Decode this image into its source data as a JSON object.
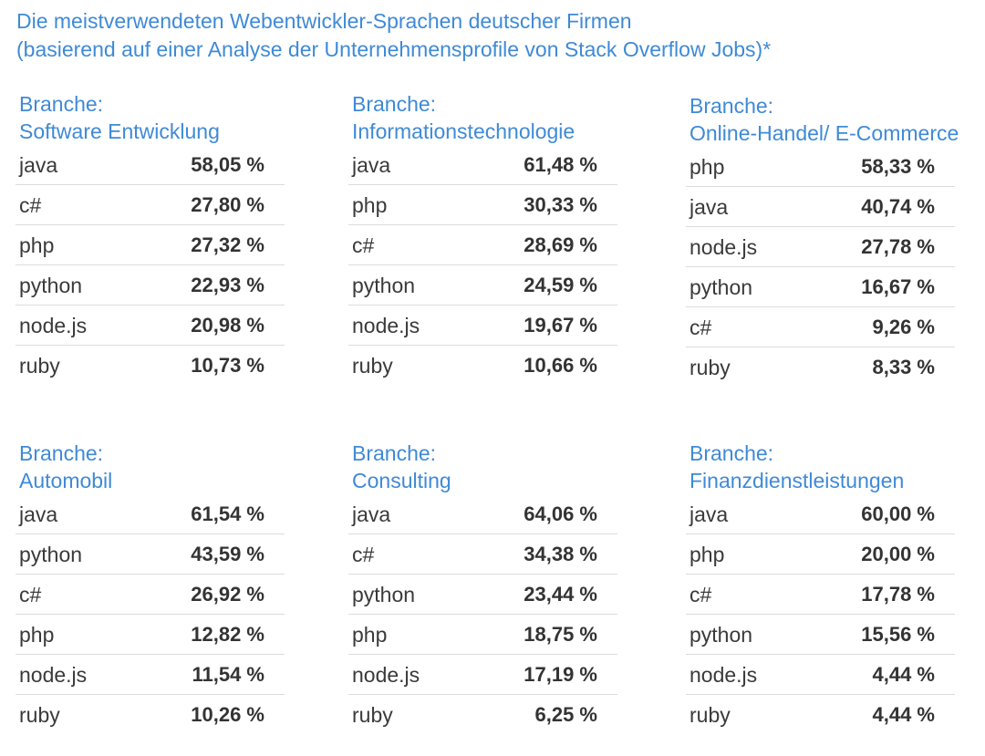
{
  "title": {
    "line1": "Die meistverwendeten Webentwickler-Sprachen deutscher Firmen",
    "line2": "(basierend auf einer Analyse der Unternehmensprofile von Stack Overflow Jobs)*"
  },
  "chart_data": {
    "type": "table",
    "title": "Die meistverwendeten Webentwickler-Sprachen deutscher Firmen (basierend auf einer Analyse der Unternehmensprofile von Stack Overflow Jobs)*",
    "tables": [
      {
        "header": "Branche:",
        "branch": "Software Entwicklung",
        "rows": [
          {
            "language": "java",
            "value": "58,05 %"
          },
          {
            "language": "c#",
            "value": "27,80 %"
          },
          {
            "language": "php",
            "value": "27,32 %"
          },
          {
            "language": "python",
            "value": "22,93 %"
          },
          {
            "language": "node.js",
            "value": "20,98 %"
          },
          {
            "language": "ruby",
            "value": "10,73 %"
          }
        ]
      },
      {
        "header": "Branche:",
        "branch": "Informationstechnologie",
        "rows": [
          {
            "language": "java",
            "value": "61,48 %"
          },
          {
            "language": "php",
            "value": "30,33 %"
          },
          {
            "language": "c#",
            "value": "28,69 %"
          },
          {
            "language": "python",
            "value": "24,59 %"
          },
          {
            "language": "node.js",
            "value": "19,67 %"
          },
          {
            "language": "ruby",
            "value": "10,66 %"
          }
        ]
      },
      {
        "header": "Branche:",
        "branch": "Online-Handel/ E-Commerce",
        "rows": [
          {
            "language": "php",
            "value": "58,33 %"
          },
          {
            "language": "java",
            "value": "40,74 %"
          },
          {
            "language": "node.js",
            "value": "27,78 %"
          },
          {
            "language": "python",
            "value": "16,67 %"
          },
          {
            "language": "c#",
            "value": "9,26 %"
          },
          {
            "language": "ruby",
            "value": "8,33 %"
          }
        ]
      },
      {
        "header": "Branche:",
        "branch": "Automobil",
        "rows": [
          {
            "language": "java",
            "value": "61,54 %"
          },
          {
            "language": "python",
            "value": "43,59 %"
          },
          {
            "language": "c#",
            "value": "26,92 %"
          },
          {
            "language": "php",
            "value": "12,82 %"
          },
          {
            "language": "node.js",
            "value": "11,54 %"
          },
          {
            "language": "ruby",
            "value": "10,26 %"
          }
        ]
      },
      {
        "header": "Branche:",
        "branch": "Consulting",
        "rows": [
          {
            "language": "java",
            "value": "64,06 %"
          },
          {
            "language": "c#",
            "value": "34,38 %"
          },
          {
            "language": "python",
            "value": "23,44 %"
          },
          {
            "language": "php",
            "value": "18,75 %"
          },
          {
            "language": "node.js",
            "value": "17,19 %"
          },
          {
            "language": "ruby",
            "value": "6,25 %"
          }
        ]
      },
      {
        "header": "Branche:",
        "branch": "Finanzdienstleistungen",
        "rows": [
          {
            "language": "java",
            "value": "60,00 %"
          },
          {
            "language": "php",
            "value": "20,00 %"
          },
          {
            "language": "c#",
            "value": "17,78 %"
          },
          {
            "language": "python",
            "value": "15,56 %"
          },
          {
            "language": "node.js",
            "value": "4,44 %"
          },
          {
            "language": "ruby",
            "value": "4,44 %"
          }
        ]
      }
    ]
  },
  "colors": {
    "accent": "#3f8ad6",
    "text": "#3a3a3a",
    "divider": "#dcdcdc"
  }
}
